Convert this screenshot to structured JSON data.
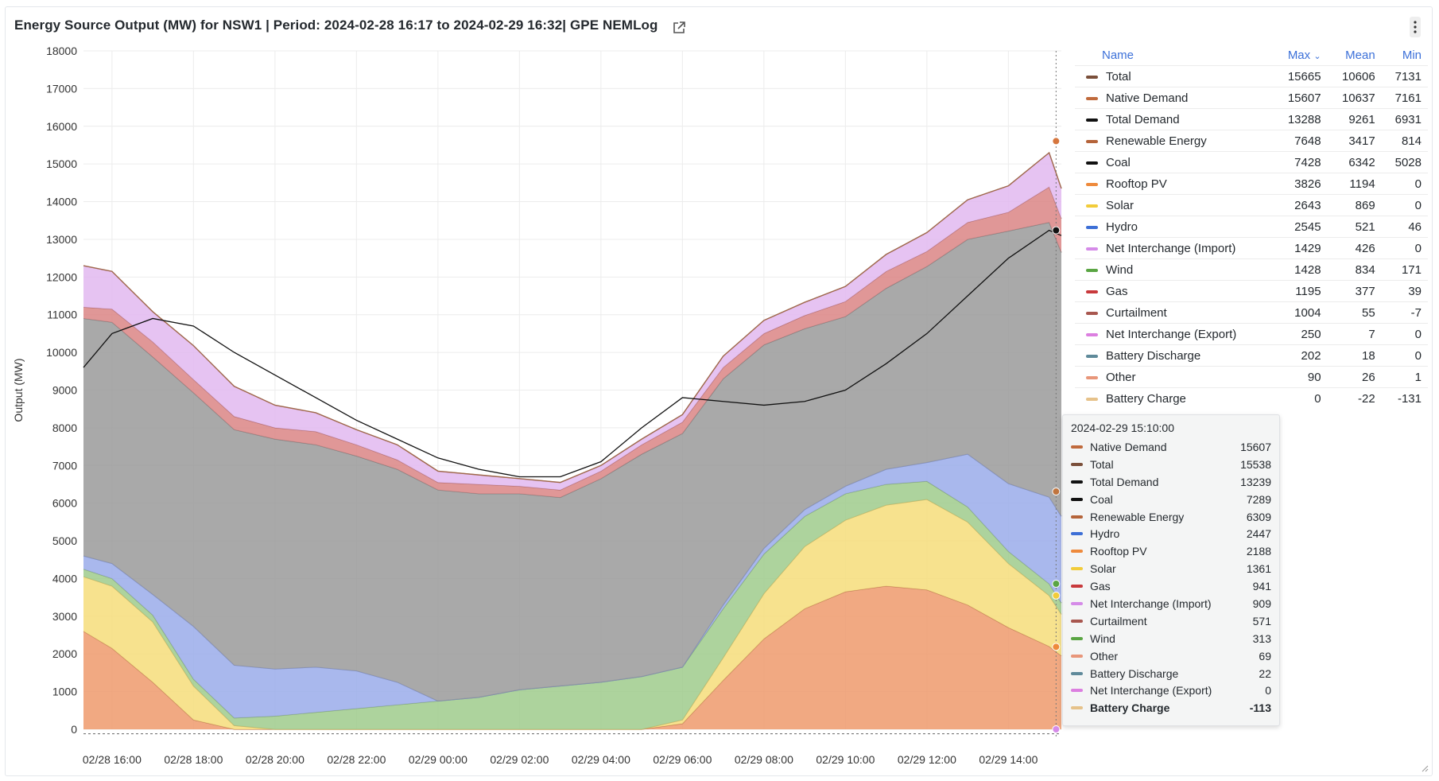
{
  "panel": {
    "title": "Energy Source Output (MW) for NSW1 | Period: 2024-02-28 16:17 to 2024-02-29 16:32| GPE NEMLog",
    "external_link_icon": "external-link-icon",
    "menu_icon": "kebab-menu-icon"
  },
  "chart_data": {
    "type": "area",
    "ylabel": "Output (MW)",
    "ylim": [
      0,
      18000
    ],
    "yticks": [
      0,
      1000,
      2000,
      3000,
      4000,
      5000,
      6000,
      7000,
      8000,
      9000,
      10000,
      11000,
      12000,
      13000,
      14000,
      15000,
      16000,
      17000,
      18000
    ],
    "xtick_labels": [
      "02/28 16:00",
      "02/28 18:00",
      "02/28 20:00",
      "02/28 22:00",
      "02/29 00:00",
      "02/29 02:00",
      "02/29 04:00",
      "02/29 06:00",
      "02/29 08:00",
      "02/29 10:00",
      "02/29 12:00",
      "02/29 14:00"
    ],
    "x_hours": [
      0,
      2,
      4,
      6,
      8,
      10,
      12,
      14,
      16,
      18,
      20,
      22
    ],
    "grid": true,
    "sample_x_hours": [
      -0.7,
      0,
      1,
      2,
      3,
      4,
      5,
      6,
      7,
      8,
      9,
      10,
      11,
      12,
      13,
      14,
      15,
      16,
      17,
      18,
      19,
      20,
      21,
      22,
      23,
      23.3
    ],
    "stacked_series": [
      {
        "name": "Rooftop PV",
        "color": "#ee9a6c",
        "values": [
          2600,
          2150,
          1250,
          250,
          0,
          0,
          0,
          0,
          0,
          0,
          0,
          0,
          0,
          0,
          0,
          150,
          1300,
          2400,
          3200,
          3650,
          3800,
          3700,
          3300,
          2700,
          2200,
          1950
        ]
      },
      {
        "name": "Solar",
        "color": "#f6dd7a",
        "values": [
          1450,
          1650,
          1600,
          900,
          100,
          0,
          0,
          0,
          0,
          0,
          0,
          0,
          0,
          0,
          0,
          100,
          600,
          1200,
          1650,
          1900,
          2150,
          2400,
          2200,
          1700,
          1350,
          1100
        ]
      },
      {
        "name": "Wind",
        "color": "#9fcb8c",
        "values": [
          200,
          200,
          180,
          180,
          200,
          350,
          450,
          550,
          650,
          750,
          850,
          1050,
          1150,
          1250,
          1400,
          1400,
          1300,
          1050,
          800,
          700,
          550,
          480,
          400,
          320,
          310,
          300
        ]
      },
      {
        "name": "Hydro",
        "color": "#9aacea",
        "values": [
          350,
          400,
          550,
          1400,
          1400,
          1250,
          1200,
          1000,
          600,
          0,
          0,
          0,
          0,
          0,
          0,
          0,
          100,
          150,
          180,
          200,
          400,
          500,
          1400,
          1800,
          2300,
          2300
        ]
      },
      {
        "name": "Coal",
        "color": "#9a9a9a",
        "values": [
          6300,
          6400,
          6300,
          6200,
          6250,
          6100,
          5900,
          5700,
          5650,
          5600,
          5400,
          5200,
          5000,
          5400,
          5900,
          6200,
          6000,
          5400,
          4800,
          4500,
          4800,
          5200,
          5700,
          6700,
          7289,
          7000
        ]
      },
      {
        "name": "Gas",
        "color": "#da8585",
        "values": [
          300,
          350,
          400,
          350,
          350,
          300,
          350,
          300,
          250,
          200,
          250,
          200,
          200,
          200,
          250,
          300,
          300,
          300,
          350,
          400,
          450,
          400,
          450,
          500,
          941,
          900
        ]
      },
      {
        "name": "Net Interchange (Import)",
        "color": "#e2b8f0",
        "values": [
          1100,
          1000,
          800,
          900,
          800,
          600,
          500,
          400,
          400,
          300,
          250,
          200,
          200,
          150,
          150,
          200,
          300,
          350,
          350,
          400,
          450,
          500,
          600,
          700,
          909,
          800
        ]
      }
    ],
    "line_series": [
      {
        "name": "Total Demand",
        "color": "#111111",
        "values": [
          9600,
          10500,
          10900,
          10700,
          10000,
          9400,
          8800,
          8200,
          7700,
          7200,
          6900,
          6700,
          6700,
          7100,
          8000,
          8800,
          8700,
          8600,
          8700,
          9000,
          9700,
          10500,
          11500,
          12500,
          13239,
          13100
        ]
      }
    ],
    "dashed_baseline": -120,
    "hover_x_hour": 23.17,
    "legend_columns": [
      "Name",
      "Max",
      "Mean",
      "Min"
    ],
    "legend_sort_indicator": "⌄",
    "legend": [
      {
        "name": "Total",
        "color": "#7a4f3a",
        "max": "15665",
        "mean": "10606",
        "min": "7131"
      },
      {
        "name": "Native Demand",
        "color": "#c06a3c",
        "max": "15607",
        "mean": "10637",
        "min": "7161"
      },
      {
        "name": "Total Demand",
        "color": "#111111",
        "max": "13288",
        "mean": "9261",
        "min": "6931"
      },
      {
        "name": "Renewable Energy",
        "color": "#b5643a",
        "max": "7648",
        "mean": "3417",
        "min": "814"
      },
      {
        "name": "Coal",
        "color": "#111111",
        "max": "7428",
        "mean": "6342",
        "min": "5028"
      },
      {
        "name": "Rooftop PV",
        "color": "#ee8a3c",
        "max": "3826",
        "mean": "1194",
        "min": "0"
      },
      {
        "name": "Solar",
        "color": "#f2cc3a",
        "max": "2643",
        "mean": "869",
        "min": "0"
      },
      {
        "name": "Hydro",
        "color": "#3d6fd6",
        "max": "2545",
        "mean": "521",
        "min": "46"
      },
      {
        "name": "Net Interchange (Import)",
        "color": "#d58be8",
        "max": "1429",
        "mean": "426",
        "min": "0"
      },
      {
        "name": "Wind",
        "color": "#5aa543",
        "max": "1428",
        "mean": "834",
        "min": "171"
      },
      {
        "name": "Gas",
        "color": "#c8393c",
        "max": "1195",
        "mean": "377",
        "min": "39"
      },
      {
        "name": "Curtailment",
        "color": "#a8574f",
        "max": "1004",
        "mean": "55",
        "min": "-7"
      },
      {
        "name": "Net Interchange (Export)",
        "color": "#dc7fe0",
        "max": "250",
        "mean": "7",
        "min": "0"
      },
      {
        "name": "Battery Discharge",
        "color": "#5f8a9a",
        "max": "202",
        "mean": "18",
        "min": "0"
      },
      {
        "name": "Other",
        "color": "#e8967a",
        "max": "90",
        "mean": "26",
        "min": "1"
      },
      {
        "name": "Battery Charge",
        "color": "#e6c28a",
        "max": "0",
        "mean": "-22",
        "min": "-131"
      }
    ],
    "tooltip": {
      "time": "2024-02-29 15:10:00",
      "rows": [
        {
          "name": "Native Demand",
          "color": "#c06a3c",
          "value": "15607"
        },
        {
          "name": "Total",
          "color": "#7a4f3a",
          "value": "15538"
        },
        {
          "name": "Total Demand",
          "color": "#111111",
          "value": "13239"
        },
        {
          "name": "Coal",
          "color": "#111111",
          "value": "7289"
        },
        {
          "name": "Renewable Energy",
          "color": "#b5643a",
          "value": "6309"
        },
        {
          "name": "Hydro",
          "color": "#3d6fd6",
          "value": "2447"
        },
        {
          "name": "Rooftop PV",
          "color": "#ee8a3c",
          "value": "2188"
        },
        {
          "name": "Solar",
          "color": "#f2cc3a",
          "value": "1361"
        },
        {
          "name": "Gas",
          "color": "#c8393c",
          "value": "941"
        },
        {
          "name": "Net Interchange (Import)",
          "color": "#d58be8",
          "value": "909"
        },
        {
          "name": "Curtailment",
          "color": "#a8574f",
          "value": "571"
        },
        {
          "name": "Wind",
          "color": "#5aa543",
          "value": "313"
        },
        {
          "name": "Other",
          "color": "#e8967a",
          "value": "69"
        },
        {
          "name": "Battery Discharge",
          "color": "#5f8a9a",
          "value": "22"
        },
        {
          "name": "Net Interchange (Export)",
          "color": "#dc7fe0",
          "value": "0"
        },
        {
          "name": "Battery Charge",
          "color": "#e6c28a",
          "value": "-113",
          "bold": true
        }
      ]
    }
  }
}
